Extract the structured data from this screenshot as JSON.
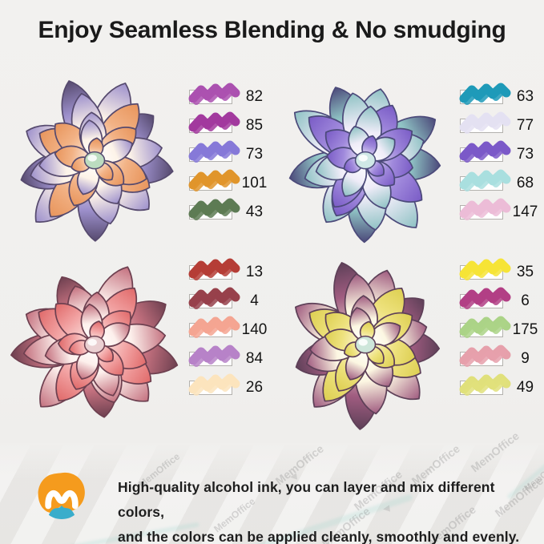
{
  "title": "Enjoy Seamless Blending & No smudging",
  "quadrants": [
    {
      "name": "peach-succulent",
      "palette": {
        "base": "#fdf3e8",
        "tip": "#f2b285",
        "shadow": "#9d90cc",
        "deep": "#e8955c",
        "accent": "#bcdcc0",
        "ink": "#564a6e"
      },
      "swatches": [
        {
          "number": "82",
          "color": "#ab51b0"
        },
        {
          "number": "85",
          "color": "#a23a9e"
        },
        {
          "number": "73",
          "color": "#8679d8"
        },
        {
          "number": "101",
          "color": "#e0952b"
        },
        {
          "number": "43",
          "color": "#5d7b54"
        }
      ]
    },
    {
      "name": "purple-succulent",
      "palette": {
        "base": "#efecf8",
        "tip": "#a089dc",
        "shadow": "#8fc2c4",
        "deep": "#7a5cc6",
        "accent": "#cfe8e6",
        "ink": "#4c4a7a"
      },
      "swatches": [
        {
          "number": "63",
          "color": "#1f9ab8"
        },
        {
          "number": "77",
          "color": "#e4e1f2"
        },
        {
          "number": "73",
          "color": "#7b59c8"
        },
        {
          "number": "68",
          "color": "#a9dfdf"
        },
        {
          "number": "147",
          "color": "#ecbcd7"
        }
      ]
    },
    {
      "name": "pink-succulent",
      "palette": {
        "base": "#fdf0ec",
        "tip": "#f2a3a3",
        "shadow": "#c4717f",
        "deep": "#e06a6a",
        "accent": "#ead0d2",
        "ink": "#6e4050"
      },
      "swatches": [
        {
          "number": "13",
          "color": "#b53d36"
        },
        {
          "number": "4",
          "color": "#97414b"
        },
        {
          "number": "140",
          "color": "#f4a592"
        },
        {
          "number": "84",
          "color": "#b782c8"
        },
        {
          "number": "26",
          "color": "#fce4bd"
        }
      ]
    },
    {
      "name": "yellow-succulent",
      "palette": {
        "base": "#fcf7e2",
        "tip": "#eee27e",
        "shadow": "#a05c80",
        "deep": "#ddcf52",
        "accent": "#cde6da",
        "ink": "#5e4058"
      },
      "swatches": [
        {
          "number": "35",
          "color": "#f6e436"
        },
        {
          "number": "6",
          "color": "#b23f85"
        },
        {
          "number": "175",
          "color": "#abd387"
        },
        {
          "number": "9",
          "color": "#e6a0ab"
        },
        {
          "number": "49",
          "color": "#e0e07b"
        }
      ]
    }
  ],
  "footer": {
    "line1": "High-quality alcohol ink, you can layer and mix different colors,",
    "line2": "and the colors can be applied cleanly, smoothly and evenly.",
    "watermark": "MemOffice",
    "logo_colors": {
      "orange": "#f59b1d",
      "blue": "#3aadcb"
    }
  },
  "colors": {
    "background": "#f0efed",
    "title_text": "#1a1a1a",
    "number_text": "#141414",
    "swatch_box_border": "#b3b1ad"
  }
}
